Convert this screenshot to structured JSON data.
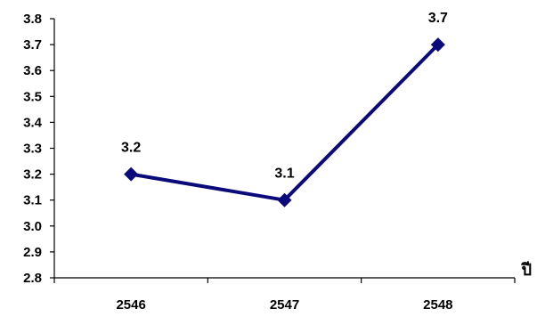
{
  "chart_data": {
    "type": "line",
    "categories": [
      "2546",
      "2547",
      "2548"
    ],
    "series": [
      {
        "values": [
          3.2,
          3.1,
          3.7
        ],
        "color": "#0a0a7a",
        "marker": "diamond"
      }
    ],
    "data_labels": [
      "3.2",
      "3.1",
      "3.7"
    ],
    "ylim": [
      2.8,
      3.8
    ],
    "y_ticks": [
      "2.8",
      "2.9",
      "3.0",
      "3.1",
      "3.2",
      "3.3",
      "3.4",
      "3.5",
      "3.6",
      "3.7",
      "3.8"
    ],
    "xlabel": "ปี",
    "ylabel": "",
    "title": "",
    "grid": false,
    "legend": "none"
  }
}
